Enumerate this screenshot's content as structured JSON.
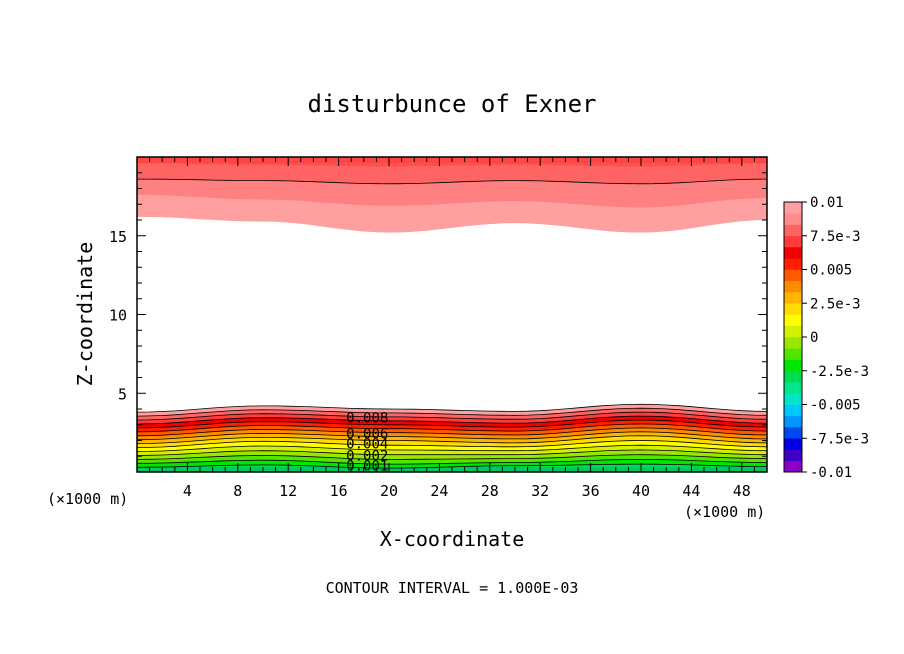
{
  "chart_data": {
    "type": "heatmap",
    "title": "disturbunce of Exner",
    "xlabel": "X-coordinate",
    "ylabel": "Z-coordinate",
    "x_unit_left": "(×1000 m)",
    "x_unit_right": "(×1000 m)",
    "footer": "CONTOUR INTERVAL = 1.000E-03",
    "xlim": [
      0,
      50
    ],
    "ylim": [
      0,
      20
    ],
    "xticks": [
      "4",
      "8",
      "12",
      "16",
      "20",
      "24",
      "28",
      "32",
      "36",
      "40",
      "44",
      "48"
    ],
    "xtick_values": [
      4,
      8,
      12,
      16,
      20,
      24,
      28,
      32,
      36,
      40,
      44,
      48
    ],
    "yticks": [
      "5",
      "10",
      "15"
    ],
    "ytick_values": [
      5,
      10,
      15
    ],
    "colorbar_range": [
      -0.01,
      0.01
    ],
    "colorbar_labels": [
      "0.01",
      "7.5e-3",
      "0.005",
      "2.5e-3",
      "0",
      "-2.5e-3",
      "-0.005",
      "-7.5e-3",
      "-0.01"
    ],
    "colorbar_label_values": [
      0.01,
      0.0075,
      0.005,
      0.0025,
      0,
      -0.0025,
      -0.005,
      -0.0075,
      -0.01
    ],
    "colorbar_colors": [
      "#8e00c8",
      "#3c00c8",
      "#0000e6",
      "#0048f0",
      "#0096ff",
      "#00c8ff",
      "#00e6c8",
      "#00e68c",
      "#00dc50",
      "#00e600",
      "#50e600",
      "#9be600",
      "#d2f000",
      "#ffff00",
      "#ffdc00",
      "#ffb400",
      "#ff8c00",
      "#ff5a00",
      "#ff1e00",
      "#f00000",
      "#ff3c3c",
      "#ff6464",
      "#ff8c8c",
      "#ffa0a0"
    ],
    "contour_labels": [
      "0.008",
      "0.006",
      "0.004",
      "0.002",
      "0.001"
    ],
    "contour_label_values": [
      0.008,
      0.006,
      0.004,
      0.002,
      0.001
    ],
    "lower_bands": [
      {
        "z": [
          0.3,
          0.45,
          0.25,
          0.4,
          0.5,
          0.35
        ],
        "color": "#00dc50"
      },
      {
        "z": [
          0.55,
          0.75,
          0.5,
          0.6,
          0.8,
          0.6
        ],
        "color": "#00e600"
      },
      {
        "z": [
          0.8,
          1.05,
          0.8,
          0.85,
          1.1,
          0.85
        ],
        "color": "#50e600"
      },
      {
        "z": [
          1.05,
          1.35,
          1.1,
          1.1,
          1.4,
          1.1
        ],
        "color": "#9be600"
      },
      {
        "z": [
          1.3,
          1.65,
          1.4,
          1.35,
          1.7,
          1.35
        ],
        "color": "#d2f000"
      },
      {
        "z": [
          1.55,
          1.95,
          1.7,
          1.6,
          2.0,
          1.6
        ],
        "color": "#ffff00"
      },
      {
        "z": [
          1.8,
          2.2,
          2.0,
          1.85,
          2.3,
          1.85
        ],
        "color": "#ffdc00"
      },
      {
        "z": [
          2.05,
          2.45,
          2.25,
          2.1,
          2.55,
          2.1
        ],
        "color": "#ffb400"
      },
      {
        "z": [
          2.3,
          2.7,
          2.5,
          2.35,
          2.8,
          2.35
        ],
        "color": "#ff8c00"
      },
      {
        "z": [
          2.55,
          2.95,
          2.75,
          2.6,
          3.05,
          2.6
        ],
        "color": "#ff5a00"
      },
      {
        "z": [
          2.8,
          3.2,
          3.0,
          2.85,
          3.3,
          2.85
        ],
        "color": "#ff1e00"
      },
      {
        "z": [
          3.05,
          3.45,
          3.25,
          3.1,
          3.55,
          3.1
        ],
        "color": "#f00000"
      },
      {
        "z": [
          3.3,
          3.7,
          3.5,
          3.35,
          3.8,
          3.35
        ],
        "color": "#ff3c3c"
      },
      {
        "z": [
          3.55,
          3.95,
          3.75,
          3.6,
          4.05,
          3.6
        ],
        "color": "#ff6464"
      },
      {
        "z": [
          3.8,
          4.2,
          4.0,
          3.85,
          4.3,
          3.85
        ],
        "color": "#ffa0a0"
      }
    ],
    "band_x": [
      0,
      10,
      20,
      30,
      40,
      50
    ],
    "upper_bands": [
      {
        "z": [
          19.6,
          19.5,
          19.4,
          19.5,
          19.4,
          19.6
        ],
        "color": "#ff5050"
      },
      {
        "z": [
          18.6,
          18.5,
          18.3,
          18.5,
          18.3,
          18.6
        ],
        "color": "#ff6464"
      },
      {
        "z": [
          17.6,
          17.3,
          16.9,
          17.2,
          16.8,
          17.4
        ],
        "color": "#ff8080"
      },
      {
        "z": [
          16.2,
          15.9,
          15.2,
          15.8,
          15.2,
          16.0
        ],
        "color": "#ffa0a0"
      }
    ]
  }
}
